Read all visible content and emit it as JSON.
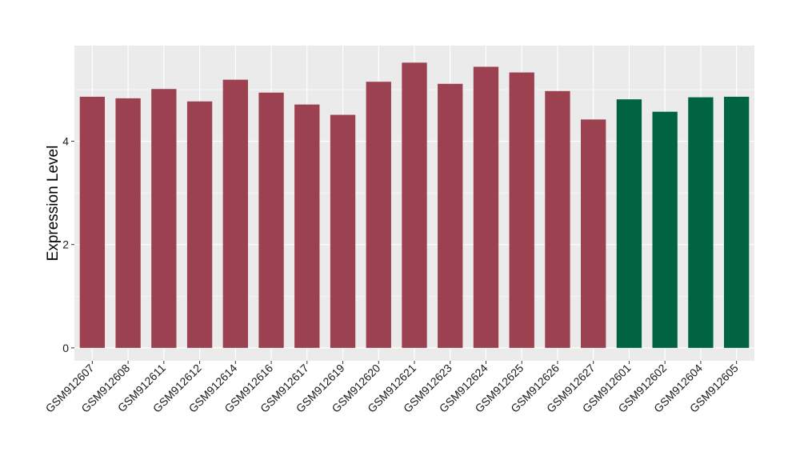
{
  "chart_data": {
    "type": "bar",
    "title": "",
    "xlabel": "",
    "ylabel": "Expression Level",
    "ylim": [
      -0.25,
      5.85
    ],
    "yticks": [
      0,
      2,
      4
    ],
    "grid": true,
    "legend": "none",
    "categories": [
      "GSM912607",
      "GSM912608",
      "GSM912611",
      "GSM912612",
      "GSM912614",
      "GSM912616",
      "GSM912617",
      "GSM912619",
      "GSM912620",
      "GSM912621",
      "GSM912623",
      "GSM912624",
      "GSM912625",
      "GSM912626",
      "GSM912627",
      "GSM912601",
      "GSM912602",
      "GSM912604",
      "GSM912605"
    ],
    "values": [
      4.86,
      4.83,
      5.01,
      4.77,
      5.19,
      4.94,
      4.71,
      4.51,
      5.15,
      5.52,
      5.11,
      5.44,
      5.33,
      4.97,
      4.42,
      4.81,
      4.57,
      4.85,
      4.86
    ],
    "bar_colors": [
      "#9b4150",
      "#9b4150",
      "#9b4150",
      "#9b4150",
      "#9b4150",
      "#9b4150",
      "#9b4150",
      "#9b4150",
      "#9b4150",
      "#9b4150",
      "#9b4150",
      "#9b4150",
      "#9b4150",
      "#9b4150",
      "#9b4150",
      "#006442",
      "#006442",
      "#006442",
      "#006442"
    ],
    "panel_background": "#ebebeb",
    "grid_color": "#ffffff"
  }
}
